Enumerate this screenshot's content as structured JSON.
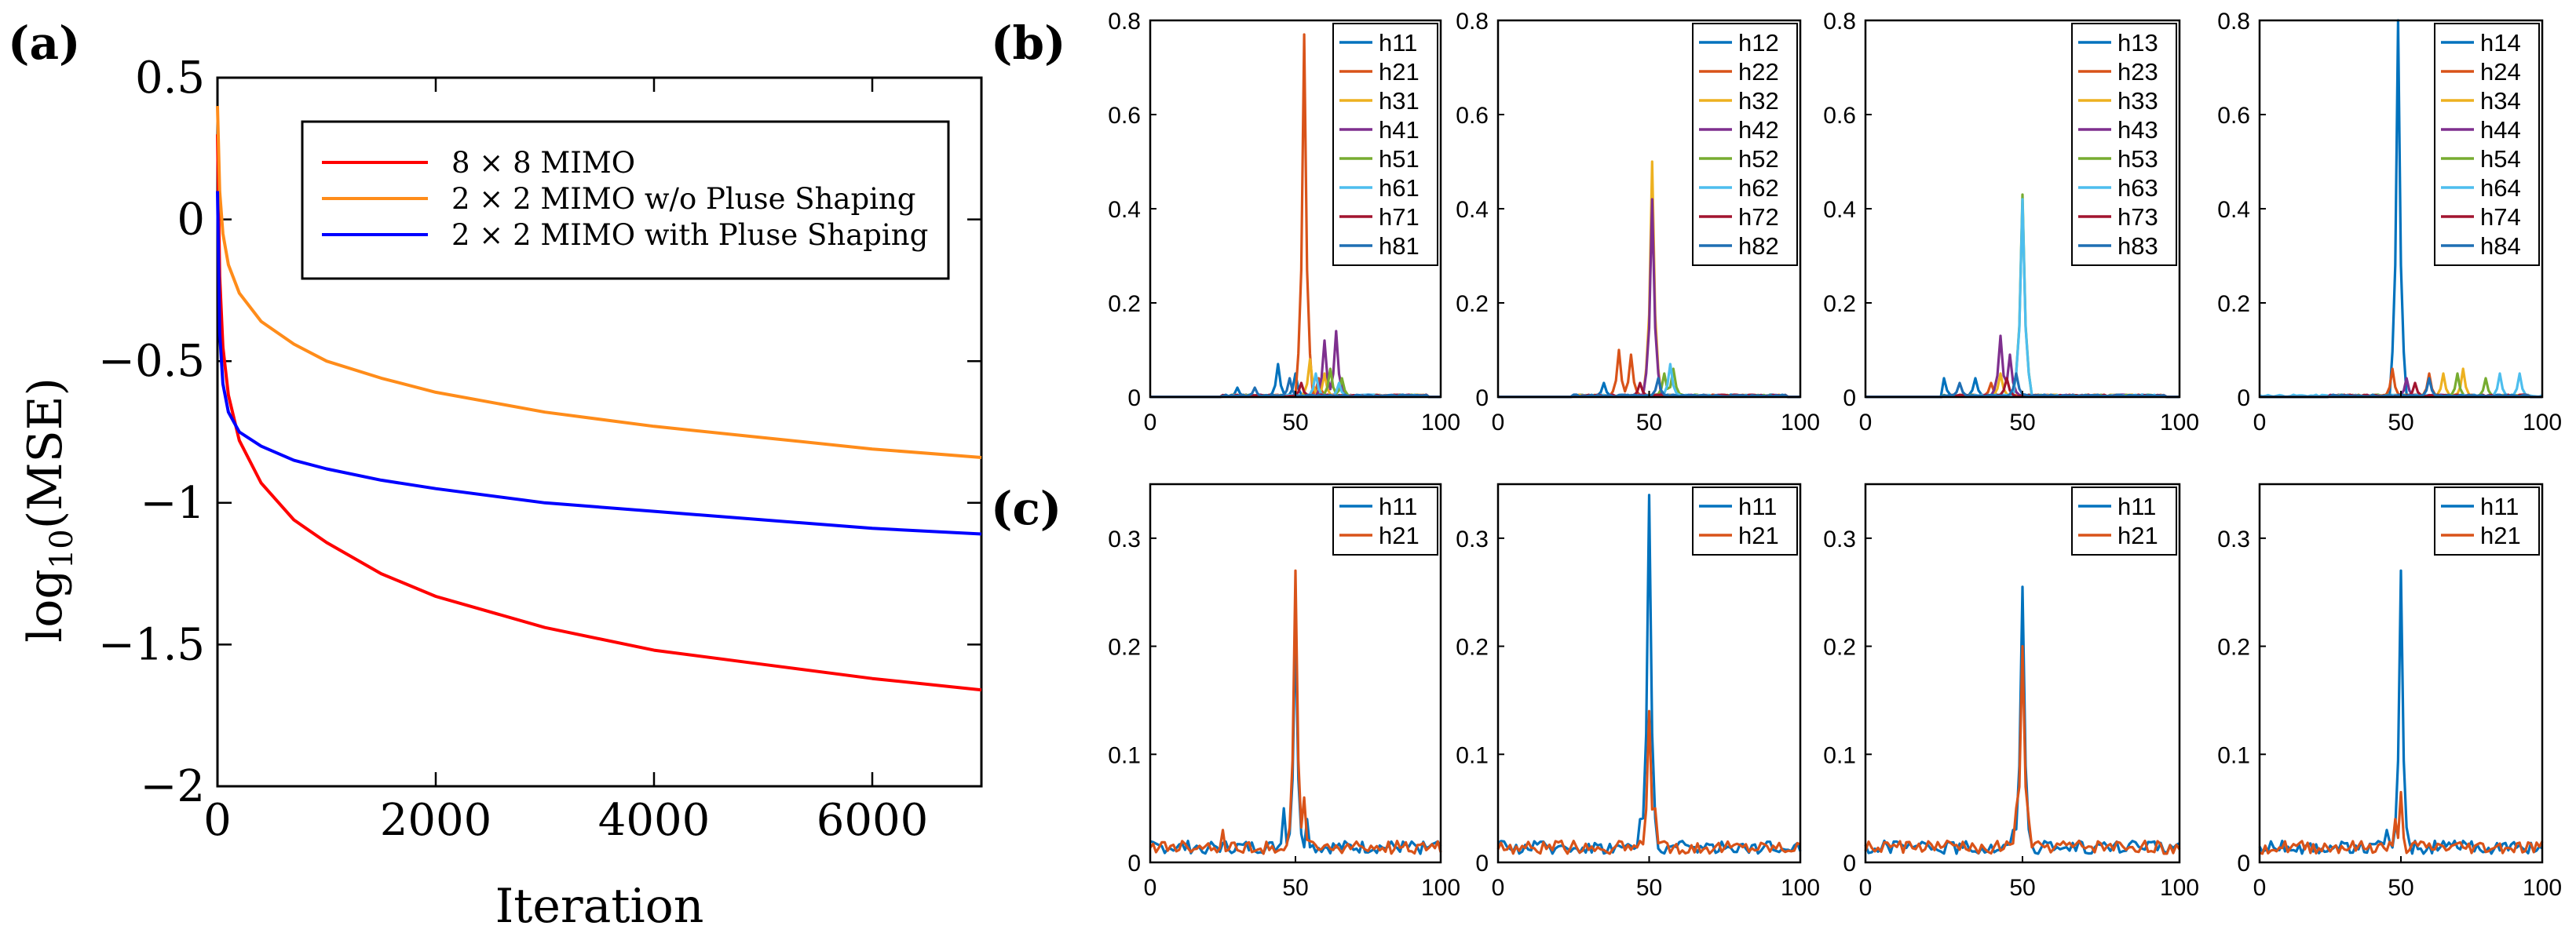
{
  "panel_labels": {
    "a": "(a)",
    "b": "(b)",
    "c": "(c)"
  },
  "colors": {
    "red": "#ff0000",
    "orange": "#ff8c1a",
    "blue": "#0000ff",
    "m1": "#0072bd",
    "m2": "#d95319",
    "m3": "#edb120",
    "m4": "#7e2f8e",
    "m5": "#77ac30",
    "m6": "#4dbeee",
    "m7": "#a2142f",
    "m8": "#1f6fb4"
  },
  "chart_data": [
    {
      "id": "a",
      "type": "line",
      "title": "",
      "xlabel": "Iteration",
      "ylabel_main": "log",
      "ylabel_sub": "10",
      "ylabel_tail": "(MSE)",
      "xlim": [
        0,
        7000
      ],
      "ylim": [
        -2,
        0.5
      ],
      "xticks": [
        0,
        2000,
        4000,
        6000
      ],
      "yticks": [
        -2,
        -1.5,
        -1,
        -0.5,
        0,
        0.5
      ],
      "yticklabels": [
        "−2",
        "−1.5",
        "−1",
        "−0.5",
        "0",
        "0.5"
      ],
      "legend_position": "top-right",
      "series": [
        {
          "name": "8 × 8 MIMO",
          "color": "red",
          "x": [
            0,
            20,
            50,
            100,
            200,
            400,
            700,
            1000,
            1500,
            2000,
            3000,
            4000,
            5000,
            6000,
            7000
          ],
          "y": [
            0.3,
            -0.2,
            -0.45,
            -0.62,
            -0.78,
            -0.93,
            -1.06,
            -1.14,
            -1.25,
            -1.33,
            -1.44,
            -1.52,
            -1.57,
            -1.62,
            -1.66
          ]
        },
        {
          "name": "2 × 2 MIMO w/o Pluse Shaping",
          "color": "orange",
          "x": [
            0,
            20,
            50,
            100,
            200,
            400,
            700,
            1000,
            1500,
            2000,
            3000,
            4000,
            5000,
            6000,
            7000
          ],
          "y": [
            0.4,
            0.1,
            -0.05,
            -0.16,
            -0.26,
            -0.36,
            -0.44,
            -0.5,
            -0.56,
            -0.61,
            -0.68,
            -0.73,
            -0.77,
            -0.81,
            -0.84
          ]
        },
        {
          "name": "2 × 2 MIMO with Pluse Shaping",
          "color": "blue",
          "x": [
            0,
            20,
            50,
            100,
            200,
            400,
            700,
            1000,
            1500,
            2000,
            3000,
            4000,
            5000,
            6000,
            7000
          ],
          "y": [
            0.1,
            -0.4,
            -0.58,
            -0.68,
            -0.75,
            -0.8,
            -0.85,
            -0.88,
            -0.92,
            -0.95,
            -1.0,
            -1.03,
            -1.06,
            -1.09,
            -1.11
          ]
        }
      ]
    },
    {
      "id": "b1",
      "type": "line",
      "xlim": [
        0,
        100
      ],
      "ylim": [
        0,
        0.8
      ],
      "xticks": [
        0,
        50,
        100
      ],
      "yticks": [
        0,
        0.2,
        0.4,
        0.6,
        0.8
      ],
      "series": [
        {
          "name": "h11",
          "color": "m1",
          "peaks": [
            [
              44,
              0.07
            ],
            [
              50,
              0.05
            ],
            [
              30,
              0.02
            ]
          ]
        },
        {
          "name": "h21",
          "color": "m2",
          "peaks": [
            [
              53,
              0.77
            ],
            [
              58,
              0.04
            ]
          ]
        },
        {
          "name": "h31",
          "color": "m3",
          "peaks": [
            [
              55,
              0.08
            ],
            [
              60,
              0.05
            ]
          ]
        },
        {
          "name": "h41",
          "color": "m4",
          "peaks": [
            [
              60,
              0.12
            ],
            [
              64,
              0.14
            ]
          ]
        },
        {
          "name": "h51",
          "color": "m5",
          "peaks": [
            [
              62,
              0.06
            ],
            [
              66,
              0.04
            ]
          ]
        },
        {
          "name": "h61",
          "color": "m6",
          "peaks": [
            [
              57,
              0.05
            ],
            [
              65,
              0.03
            ]
          ]
        },
        {
          "name": "h71",
          "color": "m7",
          "peaks": [
            [
              52,
              0.03
            ]
          ]
        },
        {
          "name": "h81",
          "color": "m8",
          "peaks": [
            [
              48,
              0.04
            ],
            [
              36,
              0.02
            ]
          ]
        }
      ]
    },
    {
      "id": "b2",
      "type": "line",
      "xlim": [
        0,
        100
      ],
      "ylim": [
        0,
        0.8
      ],
      "xticks": [
        0,
        50,
        100
      ],
      "yticks": [
        0,
        0.2,
        0.4,
        0.6,
        0.8
      ],
      "series": [
        {
          "name": "h12",
          "color": "m1",
          "peaks": [
            [
              20,
              0.02
            ],
            [
              35,
              0.03
            ]
          ]
        },
        {
          "name": "h22",
          "color": "m2",
          "peaks": [
            [
              40,
              0.1
            ],
            [
              44,
              0.09
            ]
          ]
        },
        {
          "name": "h32",
          "color": "m3",
          "peaks": [
            [
              51,
              0.5
            ]
          ]
        },
        {
          "name": "h42",
          "color": "m4",
          "peaks": [
            [
              51,
              0.42
            ]
          ]
        },
        {
          "name": "h52",
          "color": "m5",
          "peaks": [
            [
              55,
              0.05
            ],
            [
              58,
              0.06
            ]
          ]
        },
        {
          "name": "h62",
          "color": "m6",
          "peaks": [
            [
              57,
              0.07
            ]
          ]
        },
        {
          "name": "h72",
          "color": "m7",
          "peaks": [
            [
              47,
              0.03
            ]
          ]
        },
        {
          "name": "h82",
          "color": "m8",
          "peaks": [
            [
              53,
              0.04
            ]
          ]
        }
      ]
    },
    {
      "id": "b3",
      "type": "line",
      "xlim": [
        0,
        100
      ],
      "ylim": [
        0,
        0.8
      ],
      "xticks": [
        0,
        50,
        100
      ],
      "yticks": [
        0,
        0.2,
        0.4,
        0.6,
        0.8
      ],
      "series": [
        {
          "name": "h13",
          "color": "m1",
          "peaks": [
            [
              10,
              0.03
            ],
            [
              25,
              0.04
            ],
            [
              35,
              0.04
            ]
          ]
        },
        {
          "name": "h23",
          "color": "m2",
          "peaks": [
            [
              40,
              0.03
            ]
          ]
        },
        {
          "name": "h33",
          "color": "m3",
          "peaks": [
            [
              43,
              0.05
            ]
          ]
        },
        {
          "name": "h43",
          "color": "m4",
          "peaks": [
            [
              43,
              0.13
            ],
            [
              46,
              0.09
            ]
          ]
        },
        {
          "name": "h53",
          "color": "m5",
          "peaks": [
            [
              50,
              0.43
            ]
          ]
        },
        {
          "name": "h63",
          "color": "m6",
          "peaks": [
            [
              50,
              0.42
            ]
          ]
        },
        {
          "name": "h73",
          "color": "m7",
          "peaks": [
            [
              45,
              0.04
            ]
          ]
        },
        {
          "name": "h83",
          "color": "m8",
          "peaks": [
            [
              30,
              0.03
            ],
            [
              48,
              0.05
            ]
          ]
        }
      ]
    },
    {
      "id": "b4",
      "type": "line",
      "xlim": [
        0,
        100
      ],
      "ylim": [
        0,
        0.8
      ],
      "xticks": [
        0,
        50,
        100
      ],
      "yticks": [
        0,
        0.2,
        0.4,
        0.6,
        0.8
      ],
      "series": [
        {
          "name": "h14",
          "color": "m1",
          "peaks": [
            [
              49,
              0.8
            ]
          ]
        },
        {
          "name": "h24",
          "color": "m2",
          "peaks": [
            [
              47,
              0.06
            ],
            [
              60,
              0.05
            ]
          ]
        },
        {
          "name": "h34",
          "color": "m3",
          "peaks": [
            [
              65,
              0.05
            ],
            [
              72,
              0.06
            ]
          ]
        },
        {
          "name": "h44",
          "color": "m4",
          "peaks": [
            [
              52,
              0.04
            ]
          ]
        },
        {
          "name": "h54",
          "color": "m5",
          "peaks": [
            [
              70,
              0.05
            ],
            [
              80,
              0.04
            ]
          ]
        },
        {
          "name": "h64",
          "color": "m6",
          "peaks": [
            [
              85,
              0.05
            ],
            [
              92,
              0.05
            ]
          ]
        },
        {
          "name": "h74",
          "color": "m7",
          "peaks": [
            [
              55,
              0.03
            ]
          ]
        },
        {
          "name": "h84",
          "color": "m8",
          "peaks": [
            [
              60,
              0.04
            ]
          ]
        }
      ]
    },
    {
      "id": "c1",
      "type": "line",
      "xlim": [
        0,
        100
      ],
      "ylim": [
        0,
        0.35
      ],
      "xticks": [
        0,
        50,
        100
      ],
      "yticks": [
        0,
        0.1,
        0.2,
        0.3
      ],
      "series": [
        {
          "name": "h11",
          "color": "m1",
          "peaks": [
            [
              50,
              0.22
            ],
            [
              46,
              0.05
            ],
            [
              54,
              0.04
            ]
          ]
        },
        {
          "name": "h21",
          "color": "m2",
          "peaks": [
            [
              50,
              0.27
            ],
            [
              53,
              0.06
            ],
            [
              25,
              0.03
            ]
          ]
        }
      ]
    },
    {
      "id": "c2",
      "type": "line",
      "xlim": [
        0,
        100
      ],
      "ylim": [
        0,
        0.35
      ],
      "xticks": [
        0,
        50,
        100
      ],
      "yticks": [
        0,
        0.1,
        0.2,
        0.3
      ],
      "series": [
        {
          "name": "h11",
          "color": "m1",
          "peaks": [
            [
              50,
              0.34
            ],
            [
              47,
              0.04
            ]
          ]
        },
        {
          "name": "h21",
          "color": "m2",
          "peaks": [
            [
              50,
              0.14
            ],
            [
              52,
              0.05
            ]
          ]
        }
      ]
    },
    {
      "id": "c3",
      "type": "line",
      "xlim": [
        0,
        100
      ],
      "ylim": [
        0,
        0.35
      ],
      "xticks": [
        0,
        50,
        100
      ],
      "yticks": [
        0,
        0.1,
        0.2,
        0.3
      ],
      "series": [
        {
          "name": "h11",
          "color": "m1",
          "peaks": [
            [
              50,
              0.255
            ],
            [
              47,
              0.03
            ]
          ]
        },
        {
          "name": "h21",
          "color": "m2",
          "peaks": [
            [
              50,
              0.2
            ],
            [
              48,
              0.05
            ],
            [
              52,
              0.04
            ]
          ]
        }
      ]
    },
    {
      "id": "c4",
      "type": "line",
      "xlim": [
        0,
        100
      ],
      "ylim": [
        0,
        0.35
      ],
      "xticks": [
        0,
        50,
        100
      ],
      "yticks": [
        0,
        0.1,
        0.2,
        0.3
      ],
      "series": [
        {
          "name": "h11",
          "color": "m1",
          "peaks": [
            [
              50,
              0.27
            ],
            [
              45,
              0.03
            ]
          ]
        },
        {
          "name": "h21",
          "color": "m2",
          "peaks": [
            [
              50,
              0.065
            ],
            [
              48,
              0.04
            ]
          ]
        }
      ]
    }
  ]
}
